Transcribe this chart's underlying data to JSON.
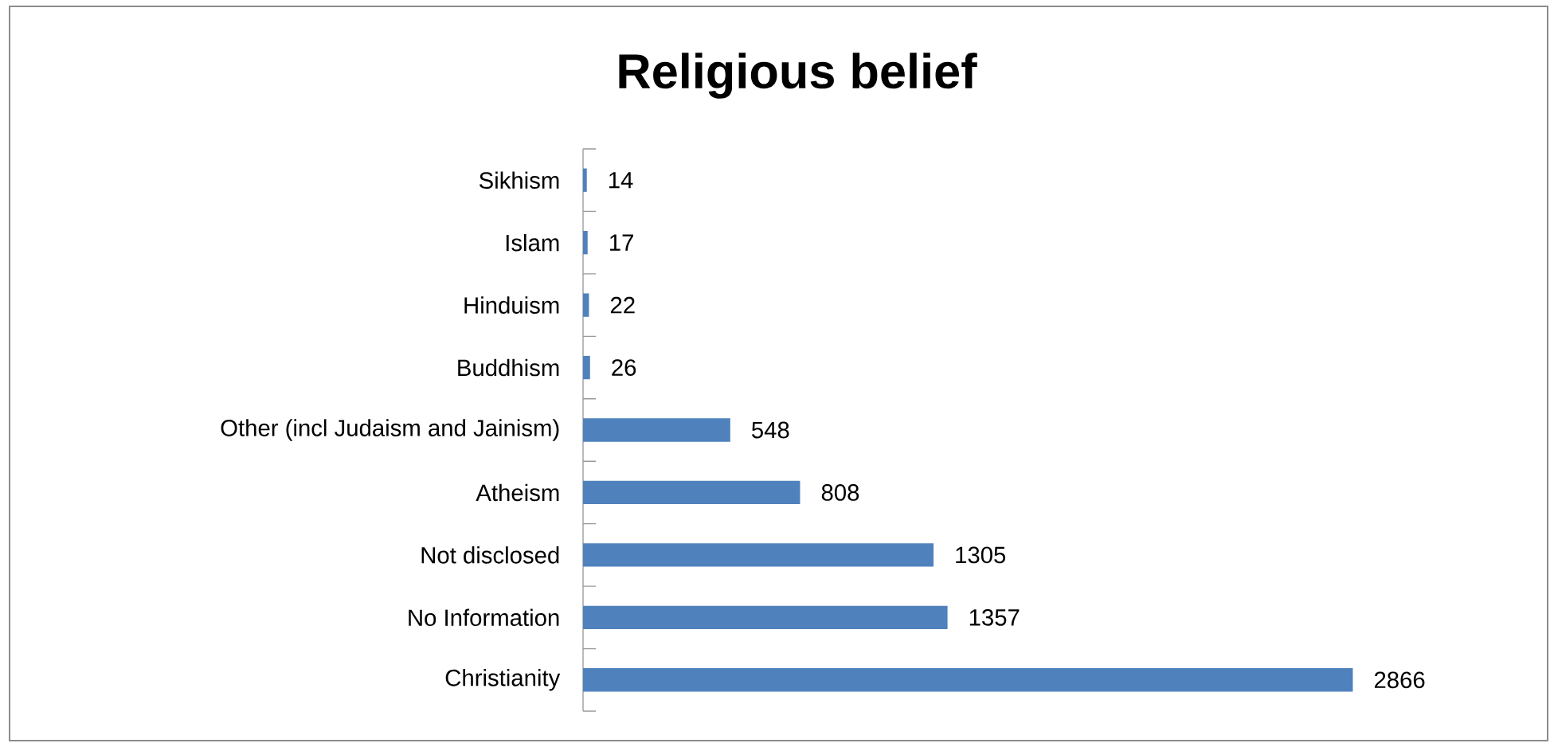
{
  "chart_data": {
    "type": "bar",
    "title": "Religious belief",
    "orientation": "horizontal",
    "categories": [
      "Sikhism",
      "Islam",
      "Hinduism",
      "Buddhism",
      "Other (incl Judaism and Jainism)",
      "Atheism",
      "Not disclosed",
      "No Information",
      "Christianity"
    ],
    "values": [
      14,
      17,
      22,
      26,
      548,
      808,
      1305,
      1357,
      2866
    ],
    "color": "#4f81bd",
    "data_labels": true
  }
}
